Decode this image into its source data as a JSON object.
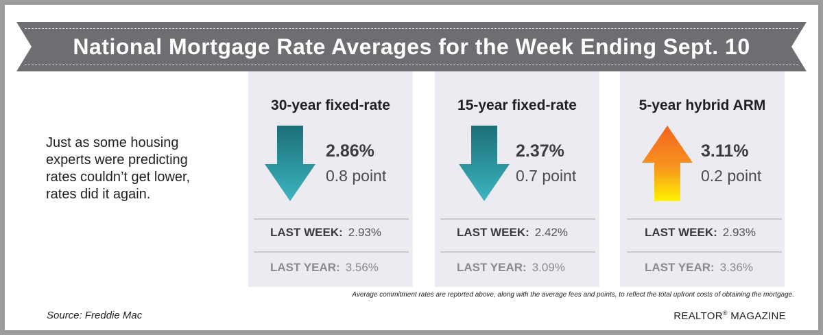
{
  "title": "National Mortgage Rate Averages for the Week Ending Sept. 10",
  "intro": "Just as some housing experts were predicting rates couldn’t get lower, rates did it again.",
  "cards": [
    {
      "name": "30-year fixed-rate",
      "rate": "2.86%",
      "change": "0.8 point",
      "direction": "down",
      "last_week_label": "LAST WEEK:",
      "last_week": "2.93%",
      "last_year_label": "LAST YEAR:",
      "last_year": "3.56%"
    },
    {
      "name": "15-year fixed-rate",
      "rate": "2.37%",
      "change": "0.7 point",
      "direction": "down",
      "last_week_label": "LAST WEEK:",
      "last_week": "2.42%",
      "last_year_label": "LAST YEAR:",
      "last_year": "3.09%"
    },
    {
      "name": "5-year hybrid ARM",
      "rate": "3.11%",
      "change": "0.2 point",
      "direction": "up",
      "last_week_label": "LAST WEEK:",
      "last_week": "2.93%",
      "last_year_label": "LAST YEAR:",
      "last_year": "3.36%"
    }
  ],
  "footnote": "Average commitment rates are reported above, along with the average fees and points, to reflect the total upfront costs of obtaining the mortgage.",
  "source": "Source: Freddie Mac",
  "brand": {
    "name": "REALTOR",
    "mark": "®",
    "suffix": " MAGAZINE"
  },
  "colors": {
    "banner": "#6d6e71",
    "border": "#9d9d9f",
    "card": "#ebebf1",
    "arrow_down": "#2c96a2",
    "arrow_up": "#f7941d"
  }
}
